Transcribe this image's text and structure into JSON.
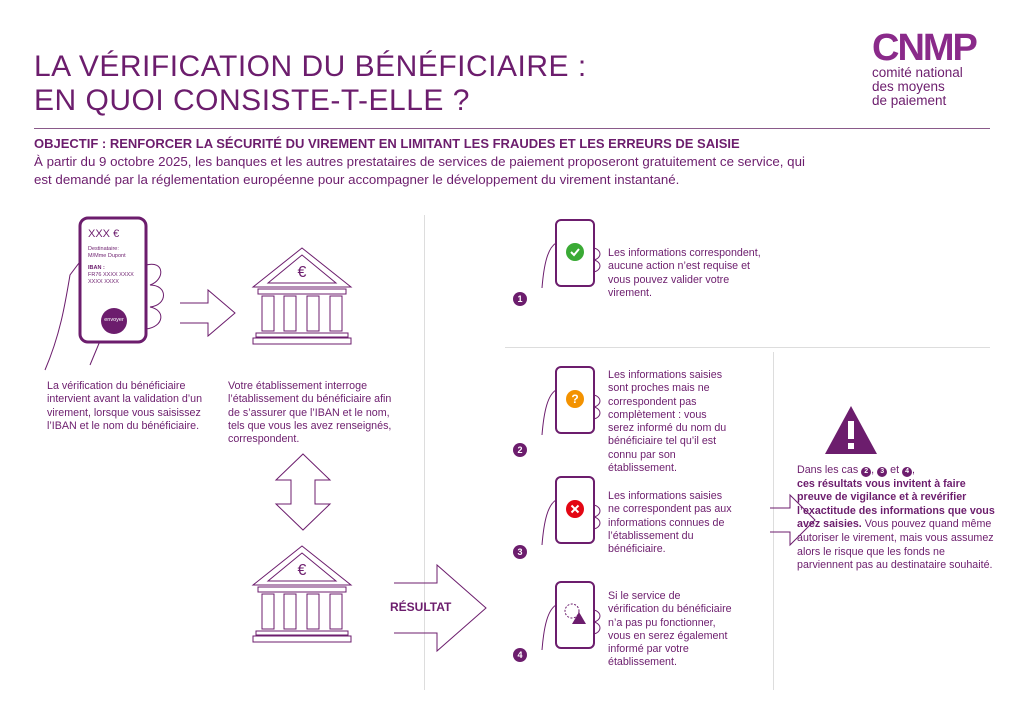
{
  "title": {
    "line1": "LA VÉRIFICATION DU BÉNÉFICIAIRE :",
    "line2": "EN QUOI CONSISTE-T-ELLE ?"
  },
  "logo": {
    "mark": "CNMP",
    "line1": "comité national",
    "line2": "des moyens",
    "line3": "de paiement"
  },
  "objective": "OBJECTIF : RENFORCER LA SÉCURITÉ DU VIREMENT EN LIMITANT LES FRAUDES ET LES ERREURS DE SAISIE",
  "intro": "À partir du 9 octobre 2025, les banques et les autres prestataires de services de paiement proposeront gratuitement ce service, qui est demandé par la réglementation européenne pour accompagner le développement du virement instantané.",
  "phone": {
    "amount": "XXX €",
    "dest_label": "Destinataire:",
    "dest_value": "M/Mme Dupont",
    "iban_label": "IBAN :",
    "iban_value1": "FR76 XXXX XXXX",
    "iban_value2": "XXXX XXXX",
    "send": "envoyer"
  },
  "step1": "La vérification du bénéficiaire intervient avant la validation d’un virement, lorsque vous saisissez l’IBAN et le nom du bénéficiaire.",
  "step2": "Votre établissement interroge l’établissement du bénéficiaire afin de s’assurer que l’IBAN et le nom, tels que vous les avez renseignés, correspondent.",
  "result_label": "RÉSULTAT",
  "cases": [
    {
      "num": "1",
      "icon": "check-icon",
      "color": "#3aaa35",
      "text": "Les informations correspondent, aucune action n’est requise et vous pouvez valider votre virement."
    },
    {
      "num": "2",
      "icon": "question-icon",
      "color": "#f39200",
      "text": "Les informations saisies sont proches mais ne correspondent pas complètement : vous serez informé du nom du bénéficiaire tel qu’il est connu par son établissement."
    },
    {
      "num": "3",
      "icon": "cross-icon",
      "color": "#e30613",
      "text": "Les informations saisies ne correspondent pas aux informations connues de l’établissement du bénéficiaire."
    },
    {
      "num": "4",
      "icon": "gear-warning-icon",
      "color": "#6c1d6d",
      "text": "Si le service de vérification du bénéficiaire n’a pas pu fonctionner, vous en serez également informé par votre établissement."
    }
  ],
  "warning": {
    "prefix": "Dans les cas",
    "n2": "2",
    "sep1": ",",
    "n3": "3",
    "sep2": "et",
    "n4": "4",
    "bold": "ces résultats vous invitent à faire preuve de vigilance et à revérifier l’exactitude des informations que vous avez saisies.",
    "rest": "Vous pouvez quand même autoriser le virement, mais vous assumez alors le risque que les fonds ne parviennent pas au destinataire souhaité."
  },
  "colors": {
    "primary": "#6c1d6d"
  }
}
